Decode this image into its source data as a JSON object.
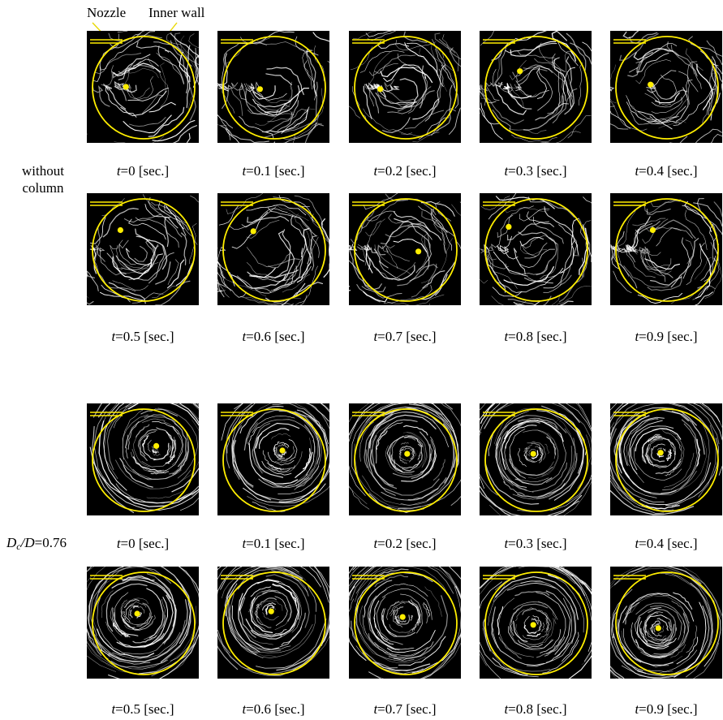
{
  "annotations": {
    "nozzle": "Nozzle",
    "inner_wall": "Inner wall"
  },
  "colors": {
    "marker": "#ffee00",
    "background": "#000000",
    "streak": "#ffffff"
  },
  "groups": [
    {
      "label_lines": [
        "without",
        "column"
      ],
      "structured": false,
      "rows": [
        [
          {
            "t": "0",
            "dot": [
              0.35,
              0.5
            ]
          },
          {
            "t": "0.1",
            "dot": [
              0.38,
              0.52
            ]
          },
          {
            "t": "0.2",
            "dot": [
              0.28,
              0.52
            ]
          },
          {
            "t": "0.3",
            "dot": [
              0.36,
              0.36
            ]
          },
          {
            "t": "0.4",
            "dot": [
              0.36,
              0.48
            ]
          }
        ],
        [
          {
            "t": "0.5",
            "dot": [
              0.3,
              0.33
            ]
          },
          {
            "t": "0.6",
            "dot": [
              0.32,
              0.34
            ]
          },
          {
            "t": "0.7",
            "dot": [
              0.62,
              0.52
            ]
          },
          {
            "t": "0.8",
            "dot": [
              0.26,
              0.3
            ]
          },
          {
            "t": "0.9",
            "dot": [
              0.38,
              0.33
            ]
          }
        ]
      ]
    },
    {
      "label_prefix": "D",
      "label_sub": "c",
      "label_mid": "/D",
      "label_suffix": "=0.76",
      "structured": true,
      "rows": [
        [
          {
            "t": "0",
            "dot": [
              0.62,
              0.38
            ]
          },
          {
            "t": "0.1",
            "dot": [
              0.58,
              0.42
            ]
          },
          {
            "t": "0.2",
            "dot": [
              0.52,
              0.45
            ]
          },
          {
            "t": "0.3",
            "dot": [
              0.48,
              0.45
            ]
          },
          {
            "t": "0.4",
            "dot": [
              0.45,
              0.44
            ]
          }
        ],
        [
          {
            "t": "0.5",
            "dot": [
              0.45,
              0.42
            ]
          },
          {
            "t": "0.6",
            "dot": [
              0.48,
              0.4
            ]
          },
          {
            "t": "0.7",
            "dot": [
              0.48,
              0.45
            ]
          },
          {
            "t": "0.8",
            "dot": [
              0.48,
              0.52
            ]
          },
          {
            "t": "0.9",
            "dot": [
              0.43,
              0.55
            ]
          }
        ]
      ]
    }
  ],
  "caption_prefix": "t",
  "caption_mid": "=",
  "caption_suffix": " [sec.]"
}
